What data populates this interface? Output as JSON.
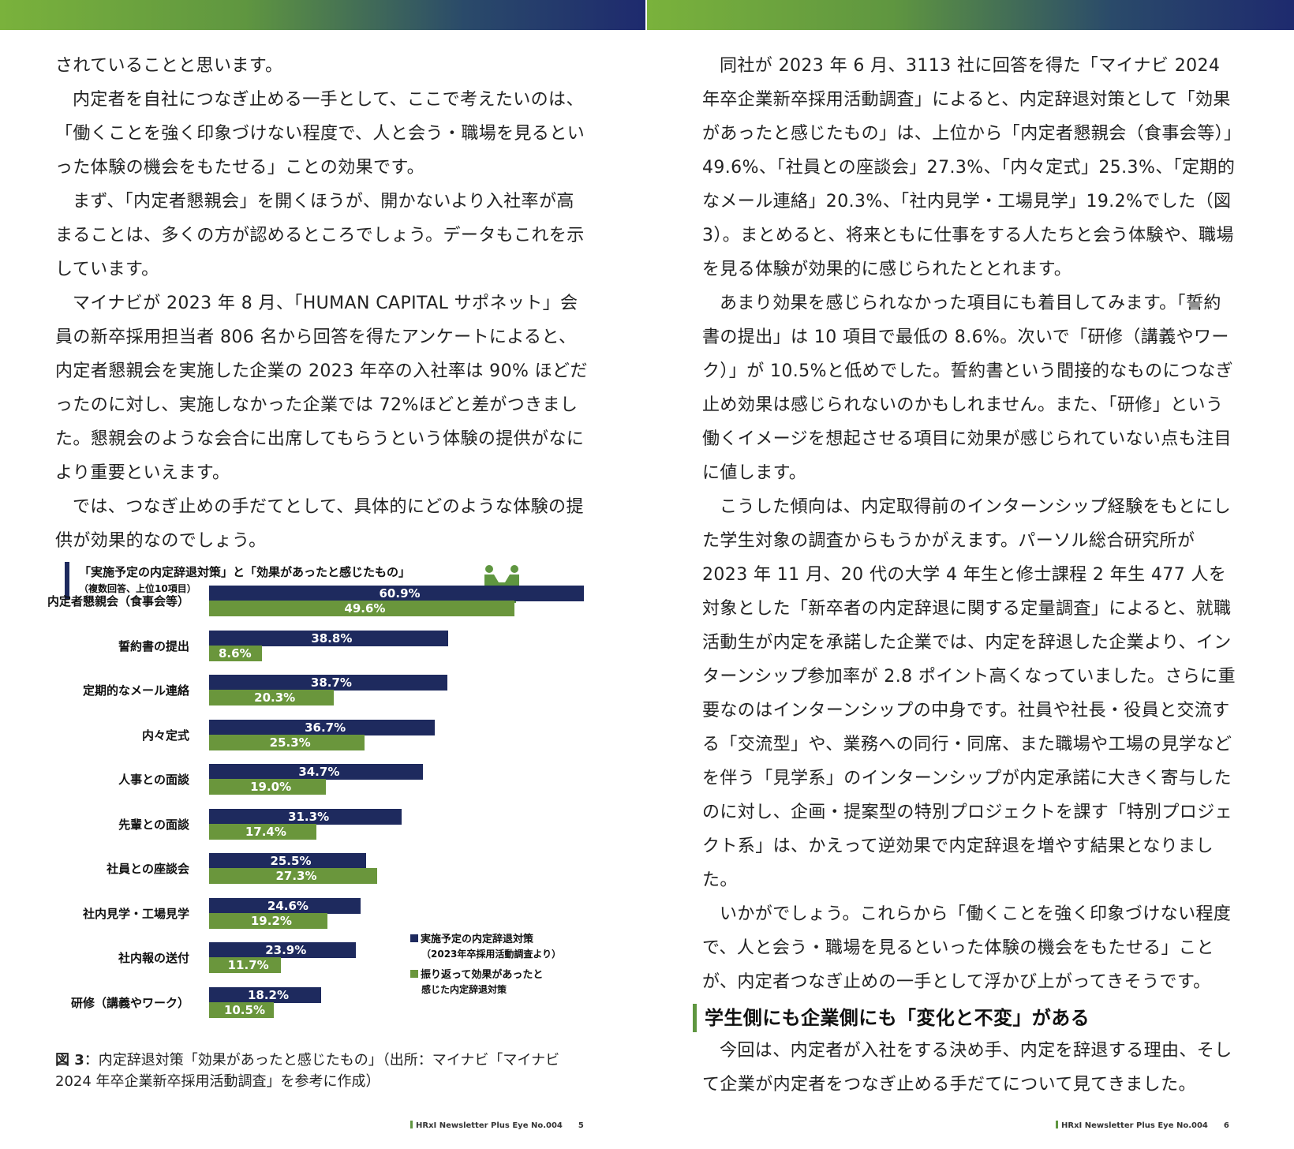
{
  "left_page": {
    "paragraphs": [
      "されていることと思います。",
      "内定者を自社につなぎ止める一手として、ここで考えたいのは、「働くことを強く印象づけない程度で、人と会う・職場を見るといった体験の機会をもたせる」ことの効果です。",
      "まず、「内定者懇親会」を開くほうが、開かないより入社率が高まることは、多くの方が認めるところでしょう。データもこれを示しています。",
      "マイナビが 2023 年 8 月、「HUMAN CAPITAL サポネット」会員の新卒採用担当者 806 名から回答を得たアンケートによると、内定者懇親会を実施した企業の 2023 年卒の入社率は 90% ほどだったのに対し、実施しなかった企業では 72%ほどと差がつきました。懇親会のような会合に出席してもらうという体験の提供がなにより重要といえます。",
      "では、つなぎ止めの手だてとして、具体的にどのような体験の提供が効果的なのでしょう。"
    ],
    "caption_label": "図 3",
    "caption_text": "：内定辞退対策「効果があったと感じたもの」（出所：マイナビ「マイナビ 2024 年卒企業新卒採用活動調査」を参考に作成）",
    "footer_brand": "HRxI Newsletter Plus Eye  No.004",
    "footer_page": "5"
  },
  "right_page": {
    "paragraphs_1": [
      "同社が 2023 年 6 月、3113 社に回答を得た「マイナビ 2024 年卒企業新卒採用活動調査」によると、内定辞退対策として「効果があったと感じたもの」は、上位から「内定者懇親会（食事会等）」49.6%、「社員との座談会」27.3%、「内々定式」25.3%、「定期的なメール連絡」20.3%、「社内見学・工場見学」19.2%でした（図 3）。まとめると、将来ともに仕事をする人たちと会う体験や、職場を見る体験が効果的に感じられたととれます。",
      "あまり効果を感じられなかった項目にも着目してみます。「誓約書の提出」は 10 項目で最低の 8.6%。次いで「研修（講義やワーク）」が 10.5%と低めでした。誓約書という間接的なものにつなぎ止め効果は感じられないのかもしれません。また、「研修」という働くイメージを想起させる項目に効果が感じられていない点も注目に値します。",
      "こうした傾向は、内定取得前のインターンシップ経験をもとにした学生対象の調査からもうかがえます。パーソル総合研究所が 2023 年 11 月、20 代の大学 4 年生と修士課程 2 年生 477 人を対象とした「新卒者の内定辞退に関する定量調査」によると、就職活動生が内定を承諾した企業では、内定を辞退した企業より、インターンシップ参加率が 2.8 ポイント高くなっていました。さらに重要なのはインターンシップの中身です。社員や社長・役員と交流する「交流型」や、業務への同行・同席、また職場や工場の見学などを伴う「見学系」のインターンシップが内定承諾に大きく寄与したのに対し、企画・提案型の特別プロジェクトを課す「特別プロジェクト系」は、かえって逆効果で内定辞退を増やす結果となりました。",
      "いかがでしょう。これらから「働くことを強く印象づけない程度で、人と会う・職場を見るといった体験の機会をもたせる」ことが、内定者つなぎ止めの一手として浮かび上がってきそうです。"
    ],
    "subheading": "学生側にも企業側にも「変化と不変」がある",
    "paragraphs_2": [
      "今回は、内定者が入社をする決め手、内定を辞退する理由、そして企業が内定者をつなぎ止める手だてについて見てきました。"
    ],
    "footer_brand": "HRxI Newsletter Plus Eye  No.004",
    "footer_page": "6"
  },
  "chart_data": {
    "type": "bar",
    "orientation": "horizontal",
    "title": "「実施予定の内定辞退対策」と「効果があったと感じたもの」",
    "subtitle": "（複数回答、上位10項目）",
    "categories": [
      "内定者懇親会（食事会等）",
      "誓約書の提出",
      "定期的なメール連絡",
      "内々定式",
      "人事との面談",
      "先輩との面談",
      "社員との座談会",
      "社内見学・工場見学",
      "社内報の送付",
      "研修（講義やワーク）"
    ],
    "series": [
      {
        "name": "実施予定の内定辞退対策",
        "note": "（2023年卒採用活動調査より）",
        "color": "#1e2a5e",
        "values": [
          60.9,
          38.8,
          38.7,
          36.7,
          34.7,
          31.3,
          25.5,
          24.6,
          23.9,
          18.2
        ],
        "labels": [
          "60.9%",
          "38.8%",
          "38.7%",
          "36.7%",
          "34.7%",
          "31.3%",
          "25.5%",
          "24.6%",
          "23.9%",
          "18.2%"
        ]
      },
      {
        "name": "振り返って効果があったと感じた内定辞退対策",
        "color": "#6a963c",
        "values": [
          49.6,
          8.6,
          20.3,
          25.3,
          19.0,
          17.4,
          27.3,
          19.2,
          11.7,
          10.5
        ],
        "labels": [
          "49.6%",
          "8.6%",
          "20.3%",
          "25.3%",
          "19.0%",
          "17.4%",
          "27.3%",
          "19.2%",
          "11.7%",
          "10.5%"
        ]
      }
    ],
    "legend_position": "bottom-right",
    "legend_lines": {
      "s1_line1": "実施予定の内定辞退対策",
      "s1_line2": "（2023年卒採用活動調査より）",
      "s2_line1": "振り返って効果があったと",
      "s2_line2": "感じた内定辞退対策"
    },
    "icon": "handshake-people-icon"
  }
}
